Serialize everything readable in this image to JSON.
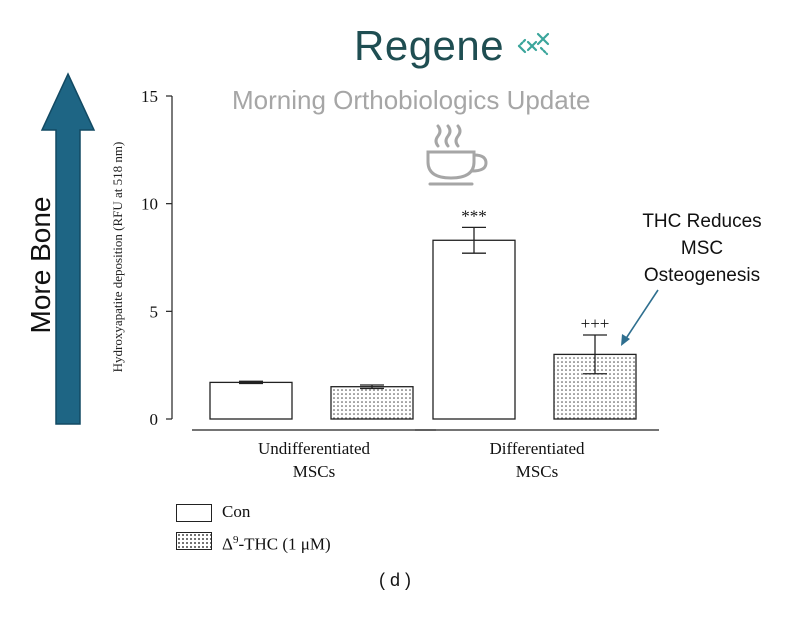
{
  "brand": {
    "name": "Regene",
    "color": "#1f4e52",
    "accent": "#3aa59b"
  },
  "subtitle": "Morning Orthobiologics Update",
  "side_label": "More Bone",
  "callout": [
    "THC Reduces",
    "MSC",
    "Osteogenesis"
  ],
  "panel_label": "( d )",
  "legend": {
    "con": "Con",
    "thc_prefix": "Δ",
    "thc_sup": "9",
    "thc_suffix": "-THC (1 μM)"
  },
  "icons": {
    "coffee": "coffee-cup-icon",
    "arrow": "up-arrow-icon"
  },
  "colors": {
    "arrow": "#1e6584",
    "callout_arrow": "#2f6f8f",
    "coffee": "#a6a6a6"
  },
  "chart_data": {
    "type": "bar",
    "ylabel": "Hydroxyapatite deposition (RFU at 518 nm)",
    "ylim": [
      0,
      15
    ],
    "yticks": [
      "0",
      "5",
      "10",
      "15"
    ],
    "groups": [
      {
        "label_lines": [
          "Undifferentiated",
          "MSCs"
        ]
      },
      {
        "label_lines": [
          "Differentiated",
          "MSCs"
        ]
      }
    ],
    "series": [
      {
        "name": "Con",
        "fill": "none",
        "values": [
          1.7,
          8.3
        ],
        "errors": [
          0.05,
          0.6
        ],
        "annotations": [
          "",
          "***"
        ]
      },
      {
        "name": "Δ9-THC (1 μM)",
        "fill": "dotted",
        "values": [
          1.5,
          3.0
        ],
        "errors": [
          0.08,
          0.9
        ],
        "annotations": [
          "",
          "+++"
        ]
      }
    ],
    "grid": false,
    "legend_position": "bottom-left"
  }
}
